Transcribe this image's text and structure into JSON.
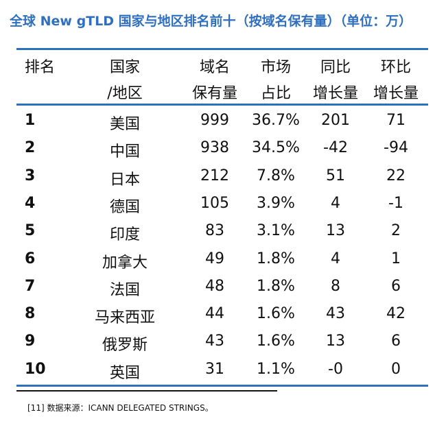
{
  "title": "全球 New gTLD 国家与地区排名前十（按域名保有量）（单位：万）",
  "headers": {
    "rank": "排名",
    "country_1": "国家",
    "country_2": "/地区",
    "holdings_1": "域名",
    "holdings_2": "保有量",
    "share_1": "市场",
    "share_2": "占比",
    "yoy_1": "同比",
    "yoy_2": "增长量",
    "mom_1": "环比",
    "mom_2": "增长量"
  },
  "rows": [
    {
      "rank": "1",
      "country": "美国",
      "holdings": "999",
      "share": "36.7%",
      "yoy": "201",
      "mom": "71"
    },
    {
      "rank": "2",
      "country": "中国",
      "holdings": "938",
      "share": "34.5%",
      "yoy": "-42",
      "mom": "-94"
    },
    {
      "rank": "3",
      "country": "日本",
      "holdings": "212",
      "share": "7.8%",
      "yoy": "51",
      "mom": "22"
    },
    {
      "rank": "4",
      "country": "德国",
      "holdings": "105",
      "share": "3.9%",
      "yoy": "4",
      "mom": "-1"
    },
    {
      "rank": "5",
      "country": "印度",
      "holdings": "83",
      "share": "3.1%",
      "yoy": "13",
      "mom": "2"
    },
    {
      "rank": "6",
      "country": "加拿大",
      "holdings": "49",
      "share": "1.8%",
      "yoy": "4",
      "mom": "1"
    },
    {
      "rank": "7",
      "country": "法国",
      "holdings": "48",
      "share": "1.8%",
      "yoy": "8",
      "mom": "6"
    },
    {
      "rank": "8",
      "country": "马来西亚",
      "holdings": "44",
      "share": "1.6%",
      "yoy": "43",
      "mom": "42"
    },
    {
      "rank": "9",
      "country": "俄罗斯",
      "holdings": "43",
      "share": "1.6%",
      "yoy": "13",
      "mom": "6"
    },
    {
      "rank": "10",
      "country": "英国",
      "holdings": "31",
      "share": "1.1%",
      "yoy": "-0",
      "mom": "0"
    }
  ],
  "footnote": "[11]  数据来源：ICANN DELEGATED STRINGS。",
  "colors": {
    "accent": "#2f6fbf",
    "text": "#111111"
  }
}
